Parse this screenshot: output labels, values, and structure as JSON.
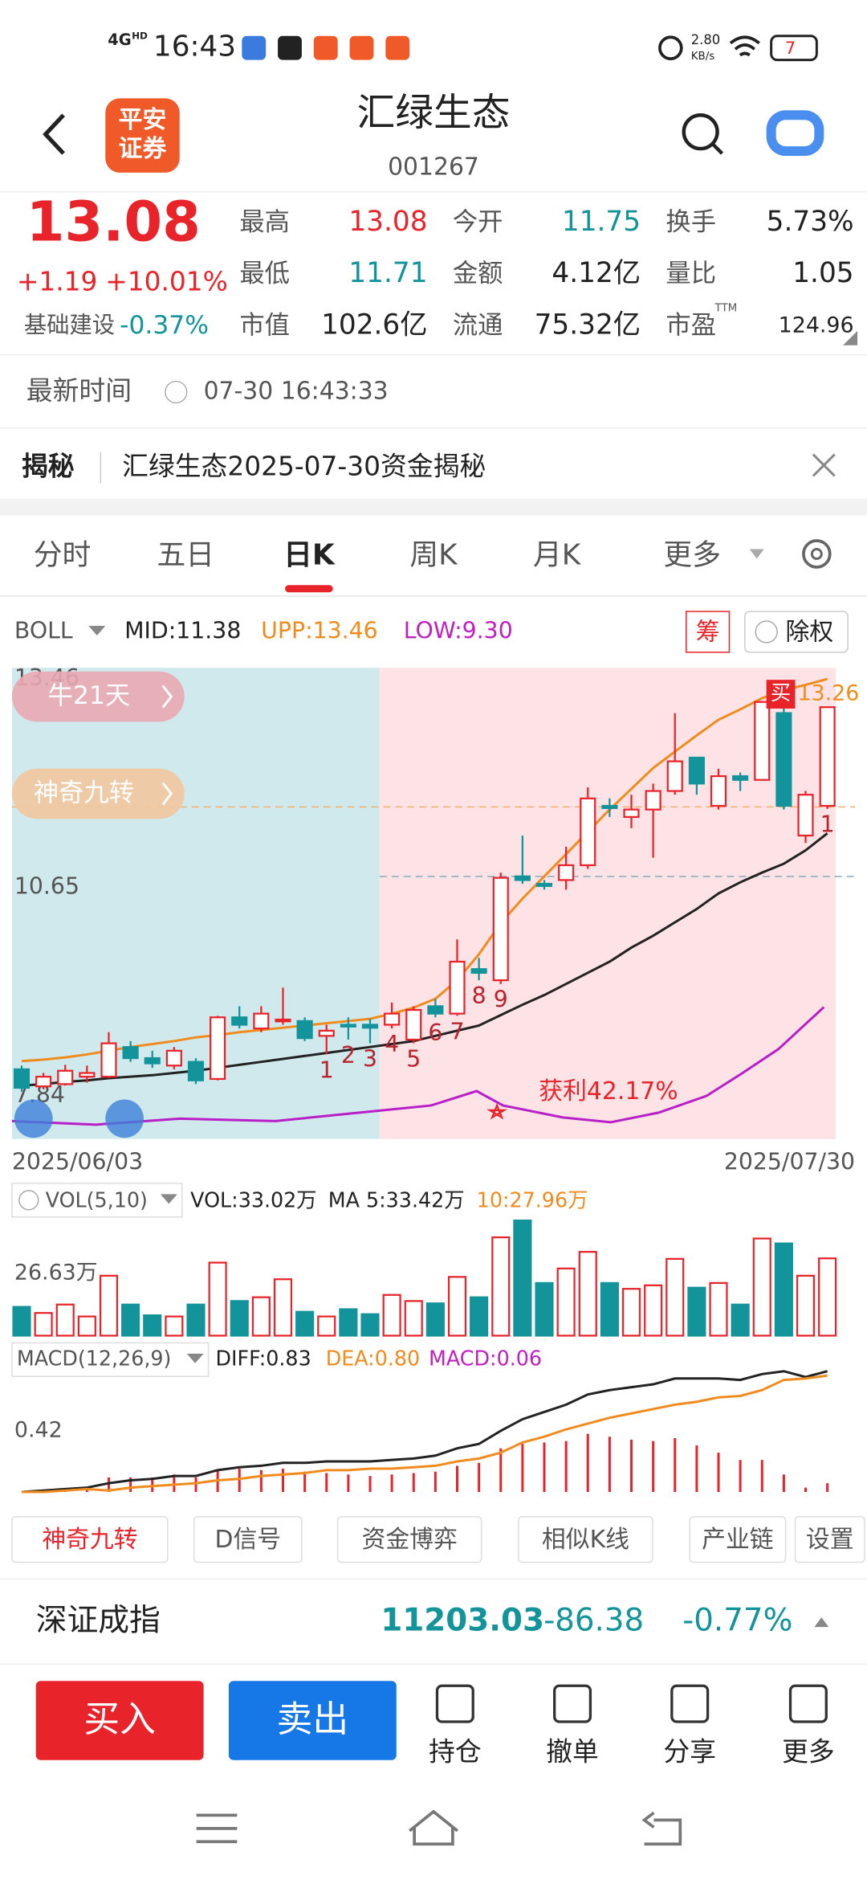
{
  "status_bar": {
    "network": "4G",
    "network_sup": "HD",
    "time": "16:43",
    "speed_value": "2.80",
    "speed_unit": "KB/s",
    "battery": "7"
  },
  "header": {
    "logo_line1": "平安",
    "logo_line2": "证券",
    "title": "汇绿生态",
    "code": "001267"
  },
  "quote": {
    "price": "13.08",
    "change": "+1.19",
    "change_pct": "+10.01%",
    "sector": "基础建设",
    "sector_change": "-0.37%",
    "stats": [
      {
        "label": "最高",
        "value": "13.08"
      },
      {
        "label": "今开",
        "value": "11.75"
      },
      {
        "label": "换手",
        "value": "5.73%"
      },
      {
        "label": "最低",
        "value": "11.71"
      },
      {
        "label": "金额",
        "value": "4.12亿"
      },
      {
        "label": "量比",
        "value": "1.05"
      },
      {
        "label": "市值",
        "value": "102.6亿"
      },
      {
        "label": "流通",
        "value": "75.32亿"
      },
      {
        "label": "市盈",
        "value": "124.96"
      }
    ],
    "pe_sup": "TTM"
  },
  "update": {
    "label": "最新时间",
    "time": "07-30 16:43:33"
  },
  "news": {
    "tag": "揭秘",
    "text": "汇绿生态2025-07-30资金揭秘"
  },
  "tabs": [
    "分时",
    "五日",
    "日K",
    "周K",
    "月K",
    "更多"
  ],
  "indicator_bar": {
    "name": "BOLL",
    "mid": "MID:11.38",
    "upp": "UPP:13.46",
    "low": "LOW:9.30",
    "chip_button": "筹",
    "adjust_button": "除权"
  },
  "chart_data": [
    {
      "type": "candlestick",
      "categories": [
        "2025/06/03",
        null,
        null,
        null,
        null,
        null,
        null,
        null,
        null,
        null,
        null,
        null,
        null,
        null,
        null,
        null,
        null,
        null,
        null,
        null,
        null,
        null,
        null,
        null,
        null,
        null,
        null,
        null,
        null,
        null,
        null,
        null,
        null,
        null,
        null,
        null,
        null,
        "2025/07/30"
      ],
      "open": [
        8.2,
        7.97,
        8.0,
        8.1,
        8.1,
        8.5,
        8.35,
        8.25,
        8.3,
        8.07,
        8.9,
        8.75,
        8.85,
        8.85,
        8.65,
        8.8,
        8.8,
        8.8,
        8.6,
        9.05,
        8.95,
        9.55,
        9.4,
        10.8,
        10.7,
        10.75,
        10.95,
        11.75,
        11.6,
        11.7,
        11.95,
        12.4,
        11.75,
        12.15,
        12.1,
        13.0,
        11.35,
        11.75
      ],
      "close": [
        7.95,
        8.1,
        8.18,
        8.15,
        8.55,
        8.35,
        8.28,
        8.45,
        8.05,
        8.9,
        8.8,
        8.95,
        8.87,
        8.62,
        8.72,
        8.78,
        8.76,
        8.95,
        9.0,
        8.95,
        9.65,
        9.5,
        10.78,
        10.75,
        10.67,
        10.95,
        11.85,
        11.72,
        11.7,
        11.95,
        12.35,
        12.05,
        12.15,
        12.1,
        13.15,
        11.75,
        11.9,
        13.08
      ],
      "high": [
        8.25,
        8.15,
        8.26,
        8.25,
        8.7,
        8.58,
        8.45,
        8.5,
        8.35,
        8.92,
        9.05,
        9.05,
        9.3,
        8.9,
        8.8,
        8.9,
        8.88,
        9.1,
        9.05,
        9.15,
        9.95,
        9.7,
        10.85,
        11.35,
        10.75,
        11.2,
        12.0,
        11.85,
        11.9,
        12.05,
        13.0,
        12.4,
        12.25,
        12.2,
        13.15,
        13.26,
        11.95,
        13.08
      ],
      "low": [
        7.9,
        7.93,
        7.98,
        8.02,
        8.08,
        8.3,
        8.22,
        8.2,
        8.0,
        8.05,
        8.75,
        8.7,
        8.8,
        8.58,
        8.4,
        8.6,
        8.55,
        8.75,
        8.55,
        8.9,
        8.92,
        9.4,
        9.35,
        10.7,
        10.62,
        10.62,
        10.9,
        11.6,
        11.45,
        11.05,
        11.9,
        11.9,
        11.7,
        11.95,
        12.1,
        11.7,
        11.25,
        11.71
      ],
      "up_color": "#e8232a",
      "down_color": "#13939a",
      "boll_lines": [
        {
          "color": "#f08c1e",
          "values": [
            8.31,
            8.33,
            8.36,
            8.4,
            8.45,
            8.5,
            8.54,
            8.58,
            8.63,
            8.66,
            8.7,
            8.73,
            8.76,
            8.79,
            8.82,
            8.85,
            8.88,
            8.95,
            9.03,
            9.15,
            9.4,
            9.75,
            10.17,
            10.5,
            10.8,
            11.1,
            11.4,
            11.7,
            11.98,
            12.26,
            12.48,
            12.7,
            12.91,
            13.05,
            13.2,
            13.31,
            13.38,
            13.46
          ]
        },
        {
          "color": "#222222",
          "values": [
            7.98,
            8.0,
            8.03,
            8.05,
            8.08,
            8.1,
            8.12,
            8.15,
            8.18,
            8.22,
            8.26,
            8.3,
            8.34,
            8.38,
            8.42,
            8.46,
            8.5,
            8.54,
            8.58,
            8.65,
            8.72,
            8.79,
            8.93,
            9.07,
            9.2,
            9.35,
            9.5,
            9.65,
            9.84,
            10.0,
            10.18,
            10.36,
            10.57,
            10.72,
            10.85,
            10.97,
            11.15,
            11.38
          ]
        }
      ],
      "nine_turn": [
        null,
        null,
        null,
        null,
        null,
        null,
        null,
        null,
        null,
        null,
        null,
        null,
        null,
        null,
        "1",
        "2",
        "3",
        "4",
        "5",
        "6",
        "7",
        "8",
        "9",
        null,
        null,
        null,
        null,
        null,
        null,
        null,
        null,
        null,
        null,
        null,
        null,
        null,
        null,
        "1"
      ],
      "ylim": [
        7.26,
        13.61
      ],
      "yticks": [
        7.84,
        10.65,
        13.46
      ],
      "bull_days": "牛21天",
      "nine_turn_button": "神奇九转",
      "profit": "获利42.17%",
      "buy_marker": "买",
      "high_marker": 13.26
    },
    {
      "type": "bar",
      "indicator": "VOL(5,10)",
      "vol_label": "VOL:33.02万",
      "ma5_label": "MA 5:33.42万",
      "ma10_label": "10:27.96万",
      "values": [
        12.3,
        9.7,
        13.3,
        8.2,
        25.6,
        13.3,
        8.7,
        8.2,
        13.3,
        31.2,
        14.8,
        16.4,
        24.1,
        10.2,
        8.2,
        11.3,
        9.2,
        17.4,
        14.8,
        13.8,
        25.1,
        16.4,
        42.0,
        49.2,
        22.5,
        28.7,
        35.8,
        22.5,
        20.0,
        21.5,
        32.8,
        20.5,
        22.5,
        13.3,
        41.5,
        39.4,
        25.6,
        33.02
      ],
      "ylim": [
        0,
        50.7
      ],
      "yticks": [
        {
          "value": 26.63,
          "label": "26.63万"
        }
      ]
    },
    {
      "type": "macd",
      "indicator": "MACD(12,26,9)",
      "bar_color": "#e8232a",
      "values": [
        0.0,
        0.01,
        0.02,
        0.03,
        0.1,
        0.1,
        0.1,
        0.12,
        0.1,
        0.15,
        0.16,
        0.15,
        0.16,
        0.14,
        0.13,
        0.12,
        0.11,
        0.12,
        0.13,
        0.14,
        0.18,
        0.2,
        0.3,
        0.33,
        0.34,
        0.35,
        0.4,
        0.38,
        0.36,
        0.35,
        0.37,
        0.32,
        0.27,
        0.22,
        0.22,
        0.12,
        0.03,
        0.06
      ],
      "macd_label": "MACD:0.06",
      "diff": {
        "label": "DIFF:0.83",
        "color": "#222222",
        "values": [
          0.0,
          0.01,
          0.02,
          0.03,
          0.06,
          0.08,
          0.09,
          0.11,
          0.11,
          0.15,
          0.17,
          0.18,
          0.2,
          0.2,
          0.21,
          0.21,
          0.21,
          0.22,
          0.23,
          0.25,
          0.3,
          0.33,
          0.42,
          0.5,
          0.55,
          0.6,
          0.67,
          0.7,
          0.72,
          0.74,
          0.78,
          0.78,
          0.78,
          0.77,
          0.81,
          0.83,
          0.79,
          0.83
        ]
      },
      "dea": {
        "label": "DEA:0.80",
        "color": "#f08c1e",
        "values": [
          0.0,
          0.0,
          0.01,
          0.02,
          0.01,
          0.03,
          0.04,
          0.05,
          0.06,
          0.08,
          0.09,
          0.11,
          0.12,
          0.13,
          0.15,
          0.15,
          0.16,
          0.16,
          0.17,
          0.18,
          0.21,
          0.23,
          0.27,
          0.34,
          0.38,
          0.43,
          0.47,
          0.51,
          0.54,
          0.57,
          0.6,
          0.62,
          0.65,
          0.66,
          0.7,
          0.77,
          0.78,
          0.8
        ]
      },
      "ylim": [
        -0.03,
        0.86
      ],
      "yticks": [
        0.42
      ]
    }
  ],
  "tool_buttons": [
    "神奇九转",
    "D信号",
    "资金博弈",
    "相似K线",
    "产业链",
    "设置"
  ],
  "index_bar": {
    "name": "深证成指",
    "value": "11203.03",
    "change": "-86.38",
    "change_pct": "-0.77%"
  },
  "actions": {
    "buy": "买入",
    "sell": "卖出",
    "items": [
      "持仓",
      "撤单",
      "分享",
      "更多"
    ]
  }
}
